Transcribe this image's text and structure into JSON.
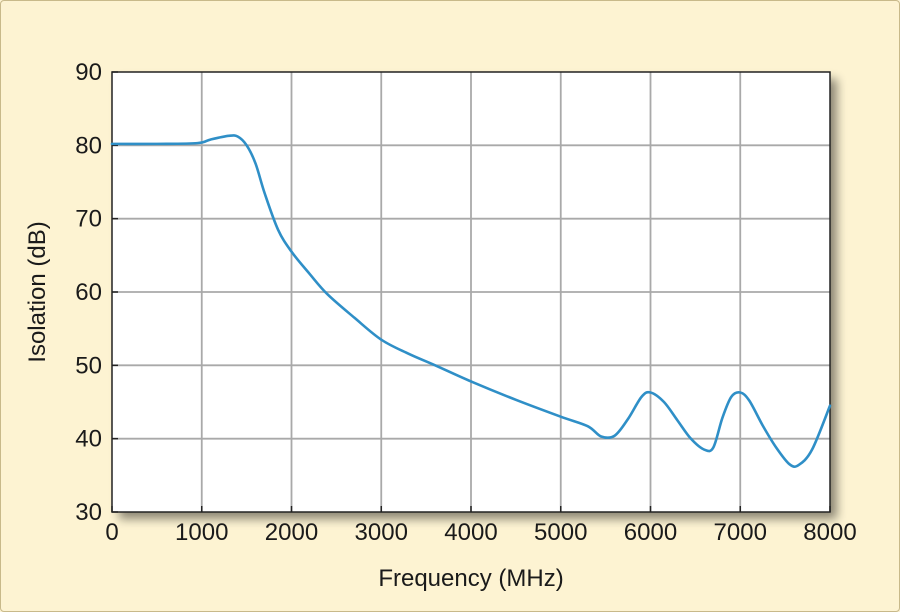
{
  "chart_data": {
    "type": "line",
    "xlabel": "Frequency (MHz)",
    "ylabel": "Isolation (dB)",
    "xlim": [
      0,
      8000
    ],
    "ylim": [
      30,
      90
    ],
    "xticks": [
      0,
      1000,
      2000,
      3000,
      4000,
      5000,
      6000,
      7000,
      8000
    ],
    "yticks": [
      30,
      40,
      50,
      60,
      70,
      80,
      90
    ],
    "grid": true,
    "legend": "none",
    "colors": {
      "line": "#2f8fc7",
      "grid": "#a9a9a9",
      "plot_bg": "#ffffff",
      "page_bg": "#fdf3d2"
    },
    "series": [
      {
        "x": [
          0,
          500,
          950,
          1100,
          1300,
          1400,
          1500,
          1600,
          1700,
          1850,
          2000,
          2200,
          2400,
          2700,
          3000,
          3300,
          3600,
          4000,
          4500,
          5000,
          5300,
          5450,
          5600,
          5750,
          5900,
          6000,
          6150,
          6300,
          6450,
          6600,
          6700,
          6800,
          6900,
          7000,
          7100,
          7250,
          7400,
          7550,
          7650,
          7800,
          8000
        ],
        "y": [
          80.2,
          80.2,
          80.3,
          80.8,
          81.3,
          81.2,
          80.0,
          77.5,
          73.5,
          68.5,
          65.5,
          62.5,
          59.7,
          56.5,
          53.5,
          51.6,
          50.0,
          47.8,
          45.3,
          43.0,
          41.7,
          40.3,
          40.4,
          42.7,
          45.7,
          46.3,
          45.0,
          42.5,
          40.0,
          38.5,
          38.8,
          42.8,
          45.7,
          46.3,
          45.2,
          41.8,
          38.8,
          36.5,
          36.4,
          38.5,
          44.5
        ]
      }
    ]
  }
}
